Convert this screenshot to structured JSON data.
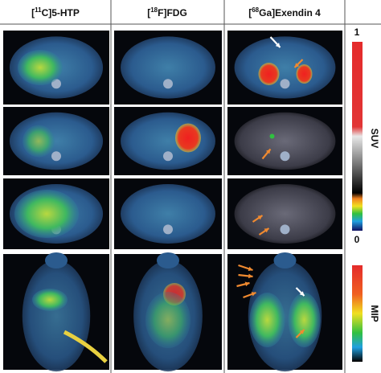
{
  "columns": [
    {
      "open": "[",
      "isotope": "11",
      "rest": "C]5-HTP"
    },
    {
      "open": "[",
      "isotope": "18",
      "rest": "F]FDG"
    },
    {
      "open": "[",
      "isotope": "68",
      "rest": "Ga]Exendin 4"
    }
  ],
  "scale_bars": [
    {
      "label": "SUV",
      "max_label": "1",
      "min_label": "0"
    },
    {
      "label": "MIP"
    }
  ]
}
